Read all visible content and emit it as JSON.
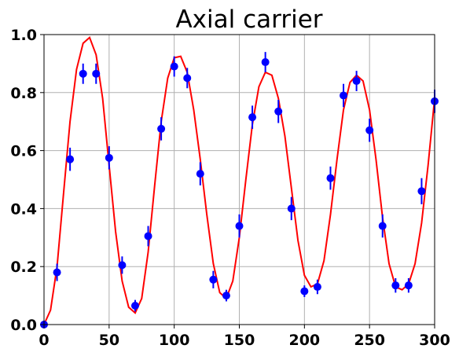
{
  "chart_data": {
    "type": "scatter",
    "title": "Axial carrier",
    "xlabel": "",
    "ylabel": "",
    "xlim": [
      0,
      300
    ],
    "ylim": [
      0.0,
      1.0
    ],
    "xticks": [
      0,
      50,
      100,
      150,
      200,
      250,
      300
    ],
    "xtick_labels": [
      "0",
      "50",
      "100",
      "150",
      "200",
      "250",
      "300"
    ],
    "yticks": [
      0.0,
      0.2,
      0.4,
      0.6,
      0.8,
      1.0
    ],
    "ytick_labels": [
      "0.0",
      "0.2",
      "0.4",
      "0.6",
      "0.8",
      "1.0"
    ],
    "grid": true,
    "colors": {
      "points": "#0000ff",
      "errorbars": "#0000ff",
      "fit": "#ff0000",
      "grid": "#b0b0b0"
    },
    "measurements": {
      "x": [
        0,
        10,
        20,
        30,
        40,
        50,
        60,
        70,
        80,
        90,
        100,
        110,
        120,
        130,
        140,
        150,
        160,
        170,
        180,
        190,
        200,
        210,
        220,
        230,
        240,
        250,
        260,
        270,
        280,
        290,
        300
      ],
      "y": [
        0.0,
        0.18,
        0.57,
        0.865,
        0.865,
        0.575,
        0.205,
        0.065,
        0.305,
        0.675,
        0.89,
        0.85,
        0.52,
        0.155,
        0.1,
        0.34,
        0.715,
        0.905,
        0.735,
        0.4,
        0.115,
        0.13,
        0.505,
        0.79,
        0.84,
        0.67,
        0.34,
        0.135,
        0.135,
        0.46,
        0.77
      ],
      "yerr": [
        0.0,
        0.03,
        0.04,
        0.035,
        0.035,
        0.04,
        0.03,
        0.02,
        0.035,
        0.04,
        0.035,
        0.035,
        0.04,
        0.03,
        0.02,
        0.04,
        0.04,
        0.035,
        0.04,
        0.04,
        0.02,
        0.025,
        0.04,
        0.04,
        0.035,
        0.04,
        0.04,
        0.025,
        0.025,
        0.045,
        0.04
      ]
    },
    "fit": {
      "x": [
        0,
        5,
        10,
        15,
        20,
        25,
        30,
        35,
        40,
        45,
        50,
        55,
        60,
        65,
        70,
        75,
        80,
        85,
        90,
        95,
        100,
        105,
        110,
        115,
        120,
        125,
        130,
        135,
        140,
        145,
        150,
        155,
        160,
        165,
        170,
        175,
        180,
        185,
        190,
        195,
        200,
        205,
        210,
        215,
        220,
        225,
        230,
        235,
        240,
        245,
        250,
        255,
        260,
        265,
        270,
        275,
        280,
        285,
        290,
        295,
        300
      ],
      "y": [
        0.0,
        0.05,
        0.2,
        0.45,
        0.7,
        0.88,
        0.97,
        0.99,
        0.93,
        0.78,
        0.55,
        0.32,
        0.15,
        0.06,
        0.04,
        0.09,
        0.25,
        0.48,
        0.7,
        0.85,
        0.92,
        0.925,
        0.87,
        0.74,
        0.57,
        0.38,
        0.21,
        0.11,
        0.09,
        0.15,
        0.3,
        0.5,
        0.69,
        0.82,
        0.87,
        0.86,
        0.78,
        0.65,
        0.47,
        0.29,
        0.17,
        0.13,
        0.14,
        0.22,
        0.38,
        0.57,
        0.74,
        0.835,
        0.86,
        0.84,
        0.74,
        0.57,
        0.37,
        0.21,
        0.13,
        0.12,
        0.14,
        0.21,
        0.35,
        0.55,
        0.78
      ]
    }
  }
}
